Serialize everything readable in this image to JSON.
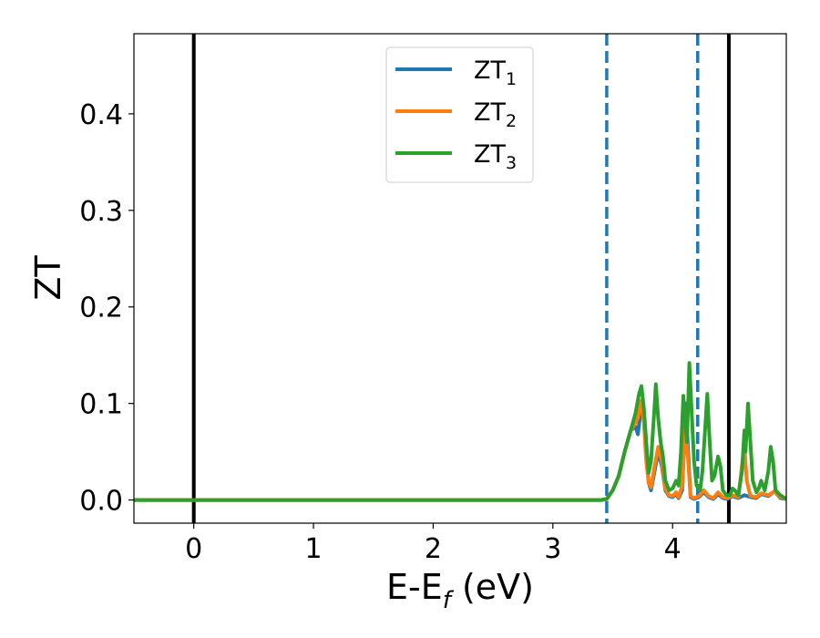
{
  "chart_data": {
    "type": "line",
    "title": "",
    "xlabel": {
      "main": "E-E",
      "sub": "f",
      "suffix": " (eV)"
    },
    "ylabel": "ZT",
    "xlim": [
      -0.5,
      4.95
    ],
    "ylim": [
      -0.024,
      0.483
    ],
    "x_ticks": [
      0,
      1,
      2,
      3,
      4
    ],
    "y_ticks": [
      0.0,
      0.1,
      0.2,
      0.3,
      0.4
    ],
    "x_tick_labels": [
      "0",
      "1",
      "2",
      "3",
      "4"
    ],
    "y_tick_labels": [
      "0.0",
      "0.1",
      "0.2",
      "0.3",
      "0.4"
    ],
    "grid": false,
    "legend_position": "top-center",
    "vertical_lines": [
      {
        "x": 0.0,
        "style": "solid",
        "color": "#000000"
      },
      {
        "x": 4.47,
        "style": "solid",
        "color": "#000000"
      },
      {
        "x": 3.45,
        "style": "dashed",
        "color": "#1f77b4"
      },
      {
        "x": 4.21,
        "style": "dashed",
        "color": "#1f77b4"
      }
    ],
    "series": [
      {
        "name": "ZT",
        "sub": "1",
        "color": "#1f77b4",
        "points": [
          [
            -0.5,
            0
          ],
          [
            3.4,
            0
          ],
          [
            3.45,
            0.001
          ],
          [
            3.5,
            0.01
          ],
          [
            3.55,
            0.025
          ],
          [
            3.6,
            0.05
          ],
          [
            3.65,
            0.072
          ],
          [
            3.69,
            0.076
          ],
          [
            3.71,
            0.068
          ],
          [
            3.74,
            0.098
          ],
          [
            3.76,
            0.09
          ],
          [
            3.78,
            0.045
          ],
          [
            3.8,
            0.018
          ],
          [
            3.82,
            0.01
          ],
          [
            3.85,
            0.03
          ],
          [
            3.88,
            0.05
          ],
          [
            3.91,
            0.035
          ],
          [
            3.94,
            0.01
          ],
          [
            3.97,
            0.004
          ],
          [
            4.0,
            0.003
          ],
          [
            4.03,
            0.006
          ],
          [
            4.05,
            0.002
          ],
          [
            4.08,
            0.01
          ],
          [
            4.11,
            0.1
          ],
          [
            4.13,
            0.05
          ],
          [
            4.15,
            0.003
          ],
          [
            4.18,
            0.001
          ],
          [
            4.22,
            0.003
          ],
          [
            4.26,
            0.008
          ],
          [
            4.3,
            0.003
          ],
          [
            4.34,
            0.001
          ],
          [
            4.38,
            0.006
          ],
          [
            4.42,
            0.002
          ],
          [
            4.46,
            0.001
          ],
          [
            4.5,
            0.004
          ],
          [
            4.55,
            0.002
          ],
          [
            4.6,
            0.005
          ],
          [
            4.65,
            0.003
          ],
          [
            4.7,
            0.002
          ],
          [
            4.74,
            0.006
          ],
          [
            4.8,
            0.004
          ],
          [
            4.85,
            0.009
          ],
          [
            4.9,
            0.002
          ],
          [
            4.95,
            0.001
          ]
        ]
      },
      {
        "name": "ZT",
        "sub": "2",
        "color": "#ff7f0e",
        "points": [
          [
            -0.5,
            0
          ],
          [
            3.4,
            0
          ],
          [
            3.45,
            0.001
          ],
          [
            3.5,
            0.01
          ],
          [
            3.55,
            0.025
          ],
          [
            3.6,
            0.05
          ],
          [
            3.65,
            0.072
          ],
          [
            3.69,
            0.08
          ],
          [
            3.71,
            0.085
          ],
          [
            3.74,
            0.103
          ],
          [
            3.76,
            0.08
          ],
          [
            3.78,
            0.04
          ],
          [
            3.8,
            0.018
          ],
          [
            3.82,
            0.013
          ],
          [
            3.85,
            0.035
          ],
          [
            3.88,
            0.055
          ],
          [
            3.91,
            0.04
          ],
          [
            3.94,
            0.012
          ],
          [
            3.97,
            0.005
          ],
          [
            4.0,
            0.004
          ],
          [
            4.03,
            0.008
          ],
          [
            4.05,
            0.003
          ],
          [
            4.08,
            0.015
          ],
          [
            4.11,
            0.078
          ],
          [
            4.13,
            0.04
          ],
          [
            4.15,
            0.004
          ],
          [
            4.18,
            0.002
          ],
          [
            4.22,
            0.004
          ],
          [
            4.26,
            0.01
          ],
          [
            4.3,
            0.004
          ],
          [
            4.34,
            0.002
          ],
          [
            4.38,
            0.008
          ],
          [
            4.42,
            0.003
          ],
          [
            4.46,
            0.002
          ],
          [
            4.5,
            0.005
          ],
          [
            4.55,
            0.003
          ],
          [
            4.6,
            0.057
          ],
          [
            4.62,
            0.02
          ],
          [
            4.65,
            0.004
          ],
          [
            4.7,
            0.003
          ],
          [
            4.74,
            0.007
          ],
          [
            4.8,
            0.005
          ],
          [
            4.85,
            0.009
          ],
          [
            4.9,
            0.003
          ],
          [
            4.95,
            0.001
          ]
        ]
      },
      {
        "name": "ZT",
        "sub": "3",
        "color": "#2ca02c",
        "points": [
          [
            -0.5,
            0
          ],
          [
            3.4,
            0
          ],
          [
            3.45,
            0.001
          ],
          [
            3.5,
            0.01
          ],
          [
            3.55,
            0.025
          ],
          [
            3.6,
            0.05
          ],
          [
            3.65,
            0.072
          ],
          [
            3.69,
            0.09
          ],
          [
            3.72,
            0.11
          ],
          [
            3.74,
            0.118
          ],
          [
            3.76,
            0.095
          ],
          [
            3.78,
            0.06
          ],
          [
            3.8,
            0.028
          ],
          [
            3.82,
            0.04
          ],
          [
            3.85,
            0.098
          ],
          [
            3.86,
            0.12
          ],
          [
            3.88,
            0.085
          ],
          [
            3.9,
            0.06
          ],
          [
            3.92,
            0.045
          ],
          [
            3.94,
            0.02
          ],
          [
            3.97,
            0.01
          ],
          [
            4.0,
            0.012
          ],
          [
            4.03,
            0.02
          ],
          [
            4.05,
            0.015
          ],
          [
            4.07,
            0.05
          ],
          [
            4.09,
            0.108
          ],
          [
            4.1,
            0.09
          ],
          [
            4.12,
            0.06
          ],
          [
            4.14,
            0.142
          ],
          [
            4.16,
            0.09
          ],
          [
            4.18,
            0.04
          ],
          [
            4.2,
            0.015
          ],
          [
            4.23,
            0.01
          ],
          [
            4.25,
            0.03
          ],
          [
            4.28,
            0.09
          ],
          [
            4.29,
            0.11
          ],
          [
            4.31,
            0.06
          ],
          [
            4.33,
            0.02
          ],
          [
            4.35,
            0.025
          ],
          [
            4.38,
            0.045
          ],
          [
            4.4,
            0.035
          ],
          [
            4.42,
            0.01
          ],
          [
            4.45,
            0.005
          ],
          [
            4.48,
            0.005
          ],
          [
            4.5,
            0.012
          ],
          [
            4.52,
            0.01
          ],
          [
            4.55,
            0.005
          ],
          [
            4.58,
            0.03
          ],
          [
            4.6,
            0.072
          ],
          [
            4.61,
            0.05
          ],
          [
            4.63,
            0.1
          ],
          [
            4.65,
            0.06
          ],
          [
            4.67,
            0.02
          ],
          [
            4.7,
            0.008
          ],
          [
            4.72,
            0.012
          ],
          [
            4.74,
            0.02
          ],
          [
            4.77,
            0.01
          ],
          [
            4.8,
            0.03
          ],
          [
            4.82,
            0.055
          ],
          [
            4.84,
            0.04
          ],
          [
            4.86,
            0.01
          ],
          [
            4.9,
            0.005
          ],
          [
            4.95,
            0.001
          ]
        ]
      }
    ]
  }
}
